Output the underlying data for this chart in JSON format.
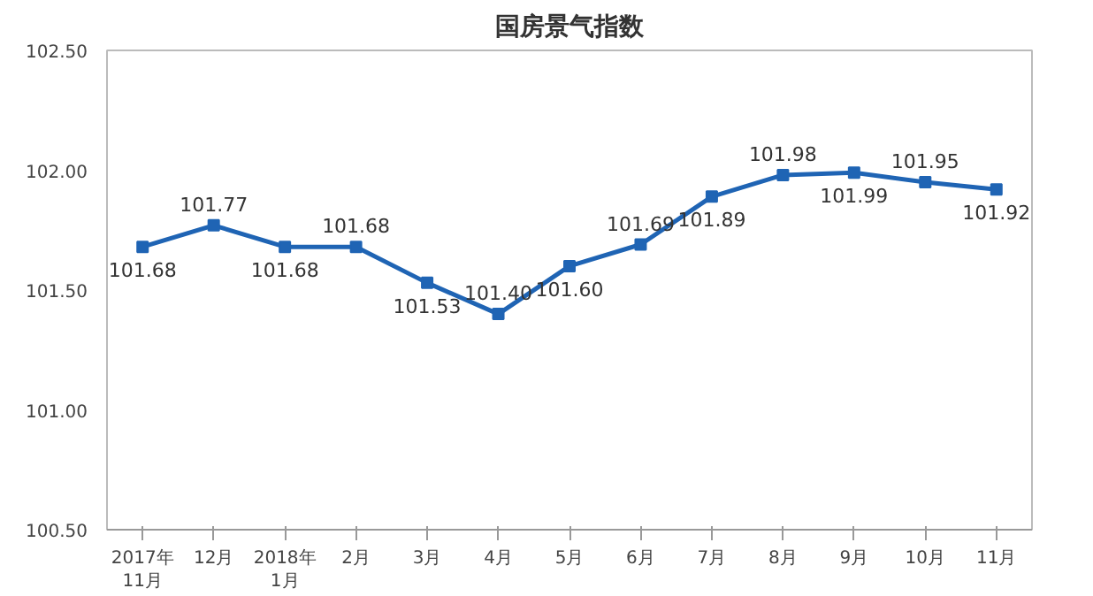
{
  "chart_data": {
    "type": "line",
    "title": "国房景气指数",
    "categories": [
      "2017年\n11月",
      "12月",
      "2018年\n1月",
      "2月",
      "3月",
      "4月",
      "5月",
      "6月",
      "7月",
      "8月",
      "9月",
      "10月",
      "11月"
    ],
    "series": [
      {
        "color": "#1f64b4",
        "values": [
          101.68,
          101.77,
          101.68,
          101.68,
          101.53,
          101.4,
          101.6,
          101.69,
          101.89,
          101.98,
          101.99,
          101.95,
          101.92
        ],
        "value_labels": [
          "101.68",
          "101.77",
          "101.68",
          "101.68",
          "101.53",
          "101.40",
          "101.60",
          "101.69",
          "101.89",
          "101.98",
          "101.99",
          "101.95",
          "101.92"
        ]
      }
    ],
    "ylim": [
      100.5,
      102.5
    ],
    "yticks": [
      {
        "value": 100.5,
        "label": "100.50"
      },
      {
        "value": 101,
        "label": "101.00"
      },
      {
        "value": 101.5,
        "label": "101.50"
      },
      {
        "value": 102,
        "label": "102.00"
      },
      {
        "value": 102.5,
        "label": "102.50"
      }
    ],
    "marker": "square",
    "line_style": "solid",
    "grid": false
  }
}
